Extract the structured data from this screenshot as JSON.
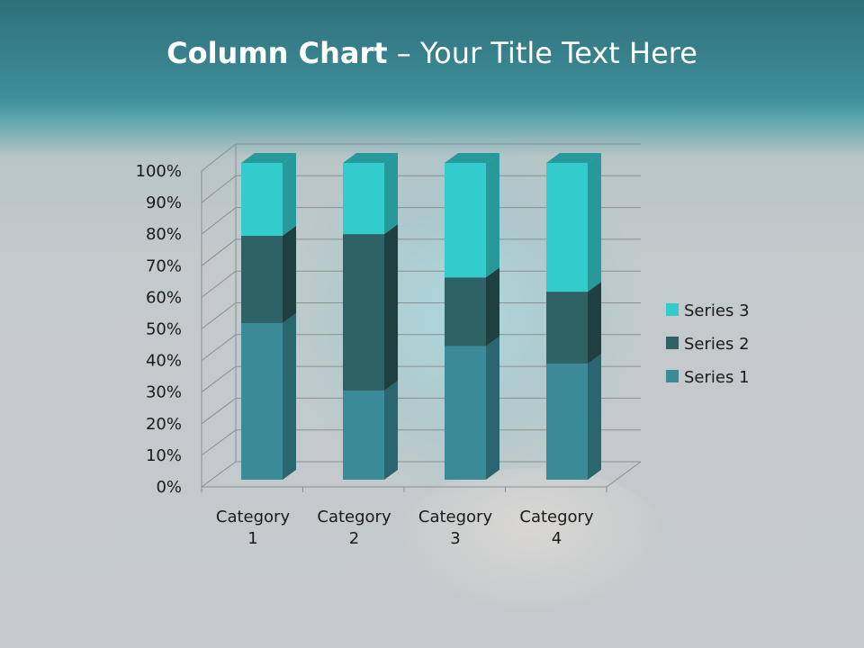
{
  "slide": {
    "title_bold": "Column Chart",
    "title_rest": " – Your Title Text Here"
  },
  "chart_data": {
    "type": "bar",
    "subtype": "3d-stacked-100-percent-column",
    "categories": [
      "Category 1",
      "Category 2",
      "Category 3",
      "Category 4"
    ],
    "category_labels": [
      [
        "Category",
        "1"
      ],
      [
        "Category",
        "2"
      ],
      [
        "Category",
        "3"
      ],
      [
        "Category",
        "4"
      ]
    ],
    "series": [
      {
        "name": "Series 1",
        "values": [
          4.3,
          2.5,
          3.5,
          4.5
        ],
        "color": "#3a8b97",
        "side": "#2a6670"
      },
      {
        "name": "Series 2",
        "values": [
          2.4,
          4.4,
          1.8,
          2.8
        ],
        "color": "#2e6264",
        "side": "#1f3f40"
      },
      {
        "name": "Series 3",
        "values": [
          2,
          2,
          3,
          5
        ],
        "color": "#33cccc",
        "side": "#27999a"
      }
    ],
    "yticks": [
      "0%",
      "10%",
      "20%",
      "30%",
      "40%",
      "50%",
      "60%",
      "70%",
      "80%",
      "90%",
      "100%"
    ],
    "ylim": [
      0,
      100
    ],
    "grid": true,
    "legend": "right"
  }
}
